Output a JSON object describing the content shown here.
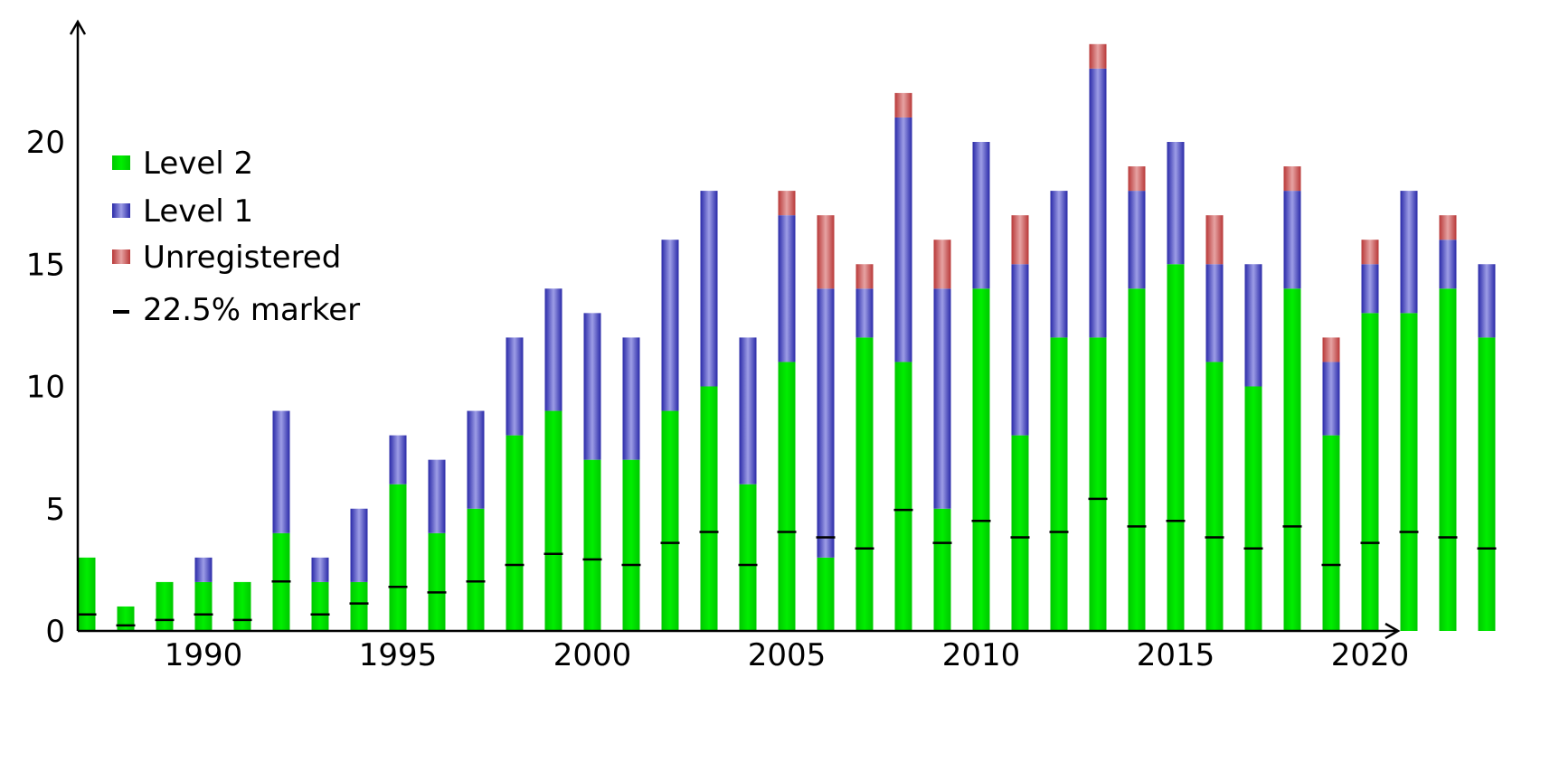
{
  "chart_data": {
    "type": "bar",
    "stacked": true,
    "title": "",
    "xlabel": "",
    "ylabel": "",
    "x": [
      1987,
      1988,
      1989,
      1990,
      1991,
      1992,
      1993,
      1994,
      1995,
      1996,
      1997,
      1998,
      1999,
      2000,
      2001,
      2002,
      2003,
      2004,
      2005,
      2006,
      2007,
      2008,
      2009,
      2010,
      2011,
      2012,
      2013,
      2014,
      2015,
      2016,
      2017,
      2018,
      2019,
      2020,
      2021,
      2022,
      2023
    ],
    "xlim": [
      1986.8,
      2024.2
    ],
    "ylim": [
      0,
      24.2
    ],
    "xticks": [
      1990,
      1995,
      2000,
      2005,
      2010,
      2015,
      2020
    ],
    "xtick_labels": [
      "1990",
      "1995",
      "2000",
      "2005",
      "2010",
      "2015",
      "2020"
    ],
    "yticks": [
      0,
      5,
      10,
      15,
      20
    ],
    "ytick_labels": [
      "0",
      "5",
      "10",
      "15",
      "20"
    ],
    "grid": false,
    "legend_position": "upper-left",
    "series": [
      {
        "name": "Level 2",
        "color": "#00dd00",
        "values": [
          3,
          1,
          2,
          2,
          2,
          4,
          2,
          2,
          6,
          4,
          5,
          8,
          9,
          7,
          7,
          9,
          10,
          6,
          11,
          3,
          12,
          11,
          5,
          14,
          8,
          12,
          12,
          14,
          15,
          11,
          10,
          14,
          8,
          13,
          13,
          14,
          12
        ]
      },
      {
        "name": "Level 1",
        "color": "#3a3ac8",
        "values": [
          0,
          0,
          0,
          1,
          0,
          5,
          1,
          3,
          2,
          3,
          4,
          4,
          5,
          6,
          5,
          7,
          8,
          6,
          6,
          11,
          2,
          10,
          9,
          6,
          7,
          6,
          11,
          4,
          5,
          4,
          5,
          4,
          3,
          2,
          5,
          2,
          3
        ]
      },
      {
        "name": "Unregistered",
        "color": "#c84848",
        "values": [
          0,
          0,
          0,
          0,
          0,
          0,
          0,
          0,
          0,
          0,
          0,
          0,
          0,
          0,
          0,
          0,
          0,
          0,
          1,
          3,
          1,
          1,
          2,
          0,
          2,
          0,
          1,
          1,
          0,
          2,
          0,
          1,
          1,
          1,
          0,
          1,
          0
        ]
      }
    ],
    "markers": {
      "name": "22.5% marker",
      "fraction": 0.225,
      "color": "#000000"
    }
  }
}
